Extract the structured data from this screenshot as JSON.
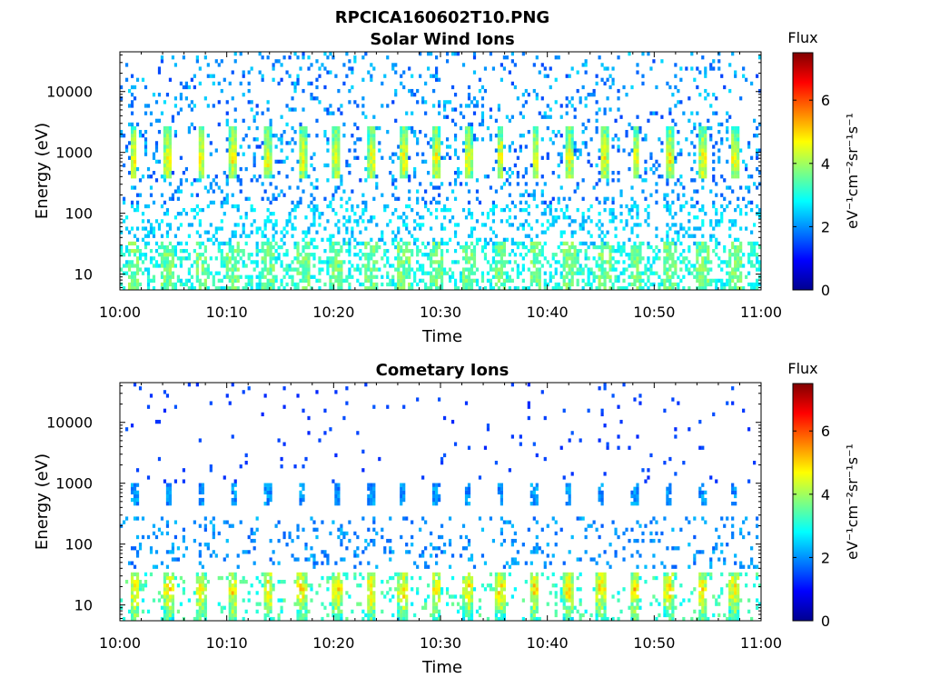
{
  "figure_title": "RPCICA160602T10.PNG",
  "colormap": "jet",
  "chart_data": [
    {
      "type": "heatmap",
      "title": "Solar Wind Ions",
      "xlabel": "Time",
      "ylabel": "Energy (eV)",
      "x_tick_labels": [
        "10:00",
        "10:10",
        "10:20",
        "10:30",
        "10:40",
        "10:50",
        "11:00"
      ],
      "x_ticks_minutes": [
        0,
        10,
        20,
        30,
        40,
        50,
        60
      ],
      "xlim_minutes": [
        0,
        60
      ],
      "y_scale": "log",
      "y_tick_values": [
        10,
        100,
        1000,
        10000
      ],
      "y_tick_labels": [
        "10",
        "100",
        "1000",
        "10000"
      ],
      "ylim": [
        5.5,
        45000
      ],
      "colorbar": {
        "label": "Flux",
        "unit": "eV⁻¹cm⁻²sr⁻¹s⁻¹",
        "range": [
          0,
          7.5
        ],
        "tick_values": [
          0,
          2,
          4,
          6
        ],
        "tick_labels": [
          "0",
          "2",
          "4",
          "6"
        ]
      },
      "burst_times_minutes": [
        1.3,
        4.5,
        7.6,
        10.6,
        13.8,
        17.1,
        20.3,
        23.6,
        26.6,
        29.6,
        32.6,
        35.6,
        38.9,
        42.1,
        45.3,
        48.3,
        51.5,
        54.6,
        57.5
      ],
      "layers": [
        {
          "name": "main_peak",
          "energy_eV": [
            400,
            2600
          ],
          "peak_flux": 4.8
        },
        {
          "name": "background_high",
          "energy_eV": [
            150,
            40000
          ],
          "mean_flux": 2.0
        },
        {
          "name": "background_low",
          "energy_eV": [
            30,
            150
          ],
          "mean_flux": 2.5
        },
        {
          "name": "low_energy_band",
          "energy_eV": [
            6,
            35
          ],
          "mean_flux": 3.0
        }
      ]
    },
    {
      "type": "heatmap",
      "title": "Cometary Ions",
      "xlabel": "Time",
      "ylabel": "Energy (eV)",
      "x_tick_labels": [
        "10:00",
        "10:10",
        "10:20",
        "10:30",
        "10:40",
        "10:50",
        "11:00"
      ],
      "x_ticks_minutes": [
        0,
        10,
        20,
        30,
        40,
        50,
        60
      ],
      "xlim_minutes": [
        0,
        60
      ],
      "y_scale": "log",
      "y_tick_values": [
        10,
        100,
        1000,
        10000
      ],
      "y_tick_labels": [
        "10",
        "100",
        "1000",
        "10000"
      ],
      "ylim": [
        5.5,
        45000
      ],
      "colorbar": {
        "label": "Flux",
        "unit": "eV⁻¹cm⁻²sr⁻¹s⁻¹",
        "range": [
          0,
          7.5
        ],
        "tick_values": [
          0,
          2,
          4,
          6
        ],
        "tick_labels": [
          "0",
          "2",
          "4",
          "6"
        ]
      },
      "burst_times_minutes": [
        1.4,
        4.6,
        7.6,
        10.6,
        13.9,
        17.0,
        20.3,
        23.5,
        26.5,
        29.6,
        32.6,
        35.6,
        38.8,
        42.0,
        45.0,
        48.2,
        51.4,
        54.5,
        57.5
      ],
      "layers": [
        {
          "name": "main_peak",
          "energy_eV": [
            450,
            1000
          ],
          "peak_flux": 2.0
        },
        {
          "name": "background_high",
          "energy_eV": [
            1000,
            40000
          ],
          "mean_flux": 1.2
        },
        {
          "name": "background_mid",
          "energy_eV": [
            40,
            300
          ],
          "mean_flux": 2.0
        },
        {
          "name": "low_energy_band",
          "energy_eV": [
            6,
            35
          ],
          "mean_flux": 5.0
        }
      ]
    }
  ]
}
